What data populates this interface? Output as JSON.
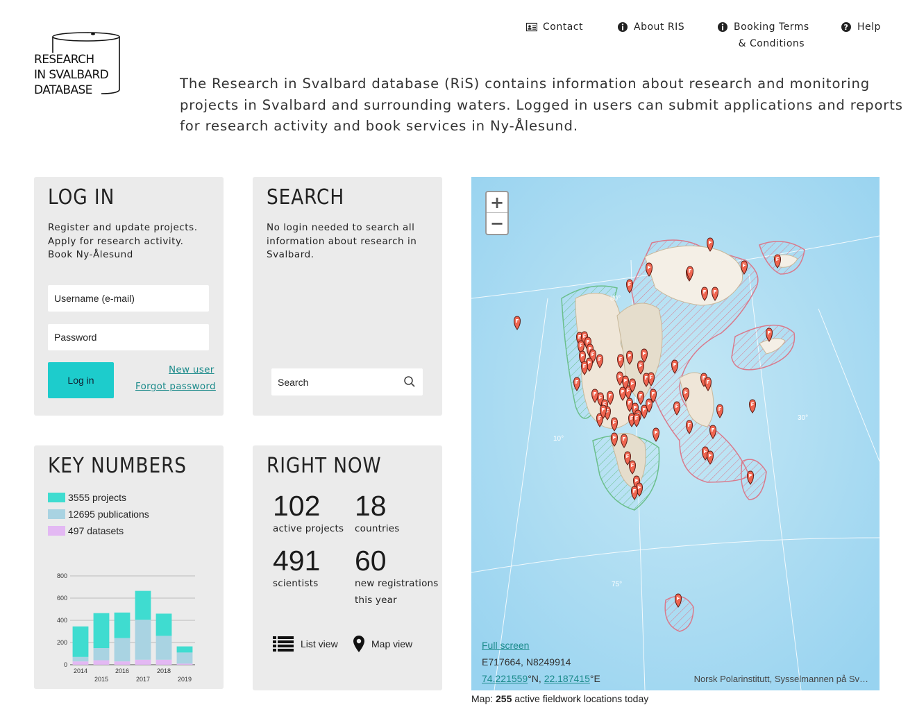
{
  "logo": {
    "line1": "RESEARCH",
    "line2": "IN SVALBARD",
    "line3": "DATABASE"
  },
  "nav": {
    "contact": "Contact",
    "about": "About RIS",
    "booking_line1": "Booking Terms",
    "booking_line2": "& Conditions",
    "help": "Help"
  },
  "intro": "The Research in Svalbard database (RiS) contains information about research and monitoring projects in Svalbard and surrounding waters. Logged in users can submit applications and reports for research activity and book services in Ny-Ålesund.",
  "login": {
    "title": "LOG IN",
    "desc_line1": "Register and update projects.",
    "desc_line2": "Apply for research activity.",
    "desc_line3": "Book Ny-Ålesund",
    "username_placeholder": "Username (e-mail)",
    "password_placeholder": "Password",
    "button": "Log in",
    "new_user": "New user",
    "forgot": "Forgot password"
  },
  "search": {
    "title": "SEARCH",
    "desc_line1": "No login needed to search all",
    "desc_line2": "information about research in",
    "desc_line3": "Svalbard.",
    "placeholder": "Search"
  },
  "key_numbers": {
    "title": "KEY NUMBERS",
    "legend": [
      {
        "label": "3555 projects",
        "color": "#3fdcd0"
      },
      {
        "label": "12695 publications",
        "color": "#a9d3e2"
      },
      {
        "label": "497 datasets",
        "color": "#e3b8f3"
      }
    ]
  },
  "chart_data": {
    "type": "bar",
    "stacked": true,
    "categories": [
      "2014",
      "2015",
      "2016",
      "2017",
      "2018",
      "2019"
    ],
    "series": [
      {
        "name": "datasets",
        "values": [
          30,
          40,
          30,
          45,
          45,
          10
        ],
        "color": "#e3b8f3"
      },
      {
        "name": "publications",
        "values": [
          40,
          110,
          210,
          360,
          215,
          100
        ],
        "color": "#a9d3e2"
      },
      {
        "name": "projects",
        "values": [
          275,
          315,
          230,
          260,
          200,
          55
        ],
        "color": "#3fdcd0"
      }
    ],
    "yticks": [
      "0",
      "200",
      "400",
      "600",
      "800"
    ],
    "ylim": [
      0,
      800
    ],
    "grid": true
  },
  "right_now": {
    "title": "RIGHT NOW",
    "active_projects_num": "102",
    "active_projects_lbl": "active projects",
    "countries_num": "18",
    "countries_lbl": "countries",
    "scientists_num": "491",
    "scientists_lbl": "scientists",
    "newreg_num": "60",
    "newreg_lbl1": "new registrations",
    "newreg_lbl2": "this year",
    "list_view": "List view",
    "map_view": "Map view"
  },
  "map": {
    "fullscreen": "Full screen",
    "coords_en": "E717664, N8249914",
    "lat": "74.221559",
    "lat_suffix": "°N, ",
    "lon": "22.187415",
    "lon_suffix": "°E",
    "attribution": "Norsk Polarinstitutt, Sysselmannen på Sv…",
    "grid_label_10": "10°",
    "grid_label_30": "30°",
    "grid_label_75": "75°",
    "grid_label_80": "80°",
    "caption_prefix": "Map: ",
    "caption_count": "255",
    "caption_suffix": " active fieldwork locations today"
  }
}
